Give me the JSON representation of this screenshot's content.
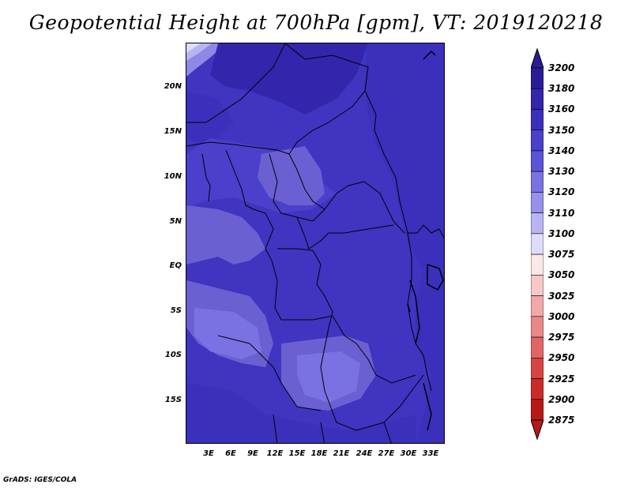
{
  "title": "Geopotential Height at 700hPa [gpm], VT: 2019120218",
  "footer": "GrADS: IGES/COLA",
  "y_labels": [
    "20N",
    "15N",
    "10N",
    "5N",
    "EQ",
    "5S",
    "10S",
    "15S"
  ],
  "x_labels": [
    "3E",
    "6E",
    "9E",
    "12E",
    "15E",
    "18E",
    "21E",
    "24E",
    "27E",
    "30E",
    "33E"
  ],
  "colorbar": {
    "levels": [
      "3200",
      "3180",
      "3160",
      "3150",
      "3140",
      "3130",
      "3120",
      "3110",
      "3100",
      "3075",
      "3050",
      "3025",
      "3000",
      "2975",
      "2950",
      "2925",
      "2900",
      "2875"
    ],
    "colors": [
      "#2a1c96",
      "#3326ac",
      "#3a30bb",
      "#4a40cc",
      "#5a54d6",
      "#7a72e2",
      "#9890ec",
      "#b8b4f4",
      "#dedcfa",
      "#fbe8e8",
      "#f6c8c8",
      "#f0a8a8",
      "#e88888",
      "#e06666",
      "#d64444",
      "#cc2a2a",
      "#b81818"
    ]
  },
  "map_colors": {
    "deep": "#3a2fb8",
    "mid": "#4b42c8",
    "light": "#6a60d2",
    "lighter": "#7a74dc",
    "pale": "#c8c4f4"
  }
}
